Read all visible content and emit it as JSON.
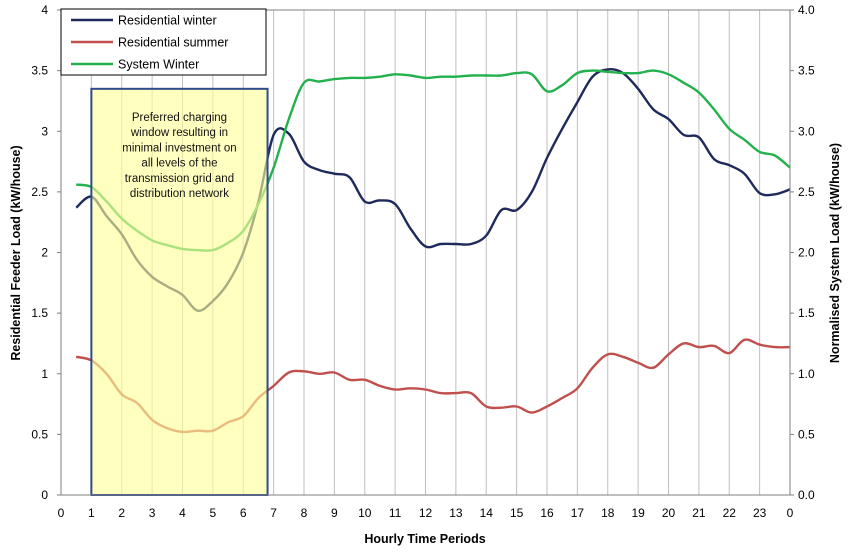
{
  "chart_data": {
    "type": "line",
    "xlabel": "Hourly Time Periods",
    "ylabel_left": "Residential Feeder Load  (kW/house)",
    "ylabel_right": "Normalised System Load (kW/house)",
    "x_tick_labels": [
      "0",
      "1",
      "2",
      "3",
      "4",
      "5",
      "6",
      "7",
      "8",
      "9",
      "10",
      "11",
      "12",
      "13",
      "14",
      "15",
      "16",
      "17",
      "18",
      "19",
      "20",
      "21",
      "22",
      "23",
      "0"
    ],
    "y_left_ticks": [
      "0",
      "0.5",
      "1",
      "1.5",
      "2",
      "2.5",
      "3",
      "3.5",
      "4"
    ],
    "y_right_ticks": [
      "0.0",
      "0.5",
      "1.0",
      "1.5",
      "2.0",
      "2.5",
      "3.0",
      "3.5",
      "4.0"
    ],
    "ylim_left": [
      0,
      4
    ],
    "ylim_right": [
      0,
      4
    ],
    "xlim": [
      0,
      24
    ],
    "grid": "vertical",
    "legend_position": "top-left",
    "series": [
      {
        "name": "Residential winter",
        "color": "#1f2a5c",
        "x": [
          0.5,
          1,
          1.5,
          2,
          2.5,
          3,
          3.5,
          4,
          4.5,
          5,
          5.5,
          6,
          6.5,
          7,
          7.5,
          8,
          8.5,
          9,
          9.5,
          10,
          10.5,
          11,
          11.5,
          12,
          12.5,
          13,
          13.5,
          14,
          14.5,
          15,
          15.5,
          16,
          16.5,
          17,
          17.5,
          18,
          18.5,
          19,
          19.5,
          20,
          20.5,
          21,
          21.5,
          22,
          22.5,
          23,
          23.5,
          24
        ],
        "values": [
          2.37,
          2.46,
          2.3,
          2.15,
          1.94,
          1.8,
          1.72,
          1.65,
          1.52,
          1.6,
          1.75,
          2.0,
          2.42,
          2.97,
          2.98,
          2.75,
          2.68,
          2.65,
          2.62,
          2.42,
          2.43,
          2.4,
          2.2,
          2.05,
          2.07,
          2.07,
          2.07,
          2.14,
          2.35,
          2.35,
          2.5,
          2.78,
          3.02,
          3.24,
          3.45,
          3.51,
          3.48,
          3.35,
          3.18,
          3.1,
          2.97,
          2.95,
          2.77,
          2.72,
          2.65,
          2.49,
          2.48,
          2.52
        ]
      },
      {
        "name": "Residential summer",
        "color": "#c0504d",
        "x": [
          0.5,
          1,
          1.5,
          2,
          2.5,
          3,
          3.5,
          4,
          4.5,
          5,
          5.5,
          6,
          6.5,
          7,
          7.5,
          8,
          8.5,
          9,
          9.5,
          10,
          10.5,
          11,
          11.5,
          12,
          12.5,
          13,
          13.5,
          14,
          14.5,
          15,
          15.5,
          16,
          16.5,
          17,
          17.5,
          18,
          18.5,
          19,
          19.5,
          20,
          20.5,
          21,
          21.5,
          22,
          22.5,
          23,
          23.5,
          24
        ],
        "values": [
          1.14,
          1.11,
          1.0,
          0.83,
          0.76,
          0.62,
          0.55,
          0.52,
          0.53,
          0.53,
          0.6,
          0.65,
          0.8,
          0.9,
          1.01,
          1.02,
          1.0,
          1.01,
          0.95,
          0.95,
          0.9,
          0.87,
          0.88,
          0.87,
          0.84,
          0.84,
          0.84,
          0.73,
          0.72,
          0.73,
          0.68,
          0.73,
          0.8,
          0.88,
          1.05,
          1.16,
          1.14,
          1.09,
          1.05,
          1.16,
          1.25,
          1.22,
          1.23,
          1.17,
          1.28,
          1.24,
          1.22,
          1.22
        ]
      },
      {
        "name": "System Winter",
        "color": "#22b14c",
        "x": [
          0.5,
          1,
          1.5,
          2,
          2.5,
          3,
          3.5,
          4,
          4.5,
          5,
          5.5,
          6,
          6.5,
          7,
          7.5,
          8,
          8.5,
          9,
          9.5,
          10,
          10.5,
          11,
          11.5,
          12,
          12.5,
          13,
          13.5,
          14,
          14.5,
          15,
          15.5,
          16,
          16.5,
          17,
          17.5,
          18,
          18.5,
          19,
          19.5,
          20,
          20.5,
          21,
          21.5,
          22,
          22.5,
          23,
          23.5,
          24
        ],
        "values": [
          2.56,
          2.54,
          2.42,
          2.28,
          2.18,
          2.1,
          2.06,
          2.03,
          2.02,
          2.02,
          2.08,
          2.18,
          2.4,
          2.7,
          3.1,
          3.4,
          3.41,
          3.43,
          3.44,
          3.44,
          3.45,
          3.47,
          3.46,
          3.44,
          3.45,
          3.45,
          3.46,
          3.46,
          3.46,
          3.48,
          3.47,
          3.33,
          3.38,
          3.48,
          3.5,
          3.49,
          3.48,
          3.48,
          3.5,
          3.47,
          3.4,
          3.32,
          3.18,
          3.02,
          2.93,
          2.83,
          2.8,
          2.7
        ]
      }
    ],
    "annotation": {
      "lines": [
        "Preferred charging",
        "window resulting in",
        "minimal investment on",
        "all levels of the",
        "transmission grid and",
        "distribution network"
      ],
      "x_range": [
        1,
        6.8
      ],
      "y_range": [
        0,
        3.35
      ],
      "fill": "#ffff99",
      "border": "#2e4b8a"
    }
  }
}
